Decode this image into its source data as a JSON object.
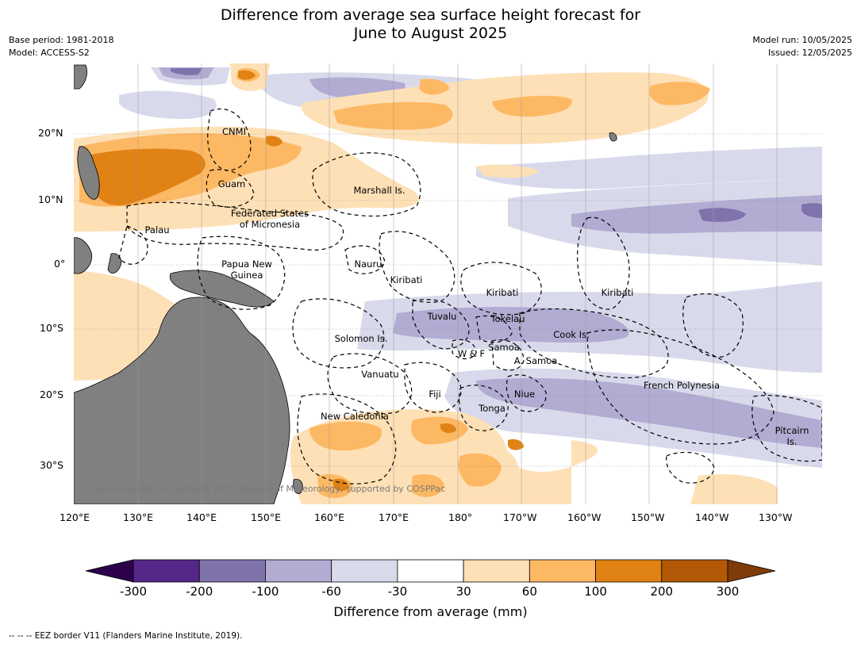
{
  "title_line1": "Difference from average sea surface height forecast for",
  "title_line2": "June to August 2025",
  "meta_left": [
    "Base period: 1981-2018",
    "Model: ACCESS-S2"
  ],
  "meta_right": [
    "Model run: 10/05/2025",
    "Issued: 12/05/2025"
  ],
  "lon_labels": [
    "120°E",
    "130°E",
    "140°E",
    "150°E",
    "160°E",
    "170°E",
    "180°",
    "170°W",
    "160°W",
    "150°W",
    "140°W",
    "130°W"
  ],
  "lat_labels": [
    "20°N",
    "10°N",
    "0°",
    "10°S",
    "20°S",
    "30°S"
  ],
  "places": [
    {
      "name": "CNMI"
    },
    {
      "name": "Guam"
    },
    {
      "name": "Marshall Is."
    },
    {
      "name": "Federated States\nof Micronesia"
    },
    {
      "name": "Palau"
    },
    {
      "name": "Papua New\nGuinea"
    },
    {
      "name": "Nauru"
    },
    {
      "name": "Kiribati"
    },
    {
      "name": "Kiribati"
    },
    {
      "name": "Kiribati"
    },
    {
      "name": "Tuvalu"
    },
    {
      "name": "Tokelau"
    },
    {
      "name": "Solomon Is."
    },
    {
      "name": "Cook Is."
    },
    {
      "name": "Samoa"
    },
    {
      "name": "W & F"
    },
    {
      "name": "A. Samoa"
    },
    {
      "name": "Vanuatu"
    },
    {
      "name": "Fiji"
    },
    {
      "name": "Niue"
    },
    {
      "name": "French Polynesia"
    },
    {
      "name": "Tonga"
    },
    {
      "name": "New Caledonia"
    },
    {
      "name": "Pitcairn\nIs."
    }
  ],
  "copyright": "© Commonwealth of Australia 2025, Bureau of Meteorology, supported by COSPPac",
  "colorbar": {
    "labels": [
      "-300",
      "-200",
      "-100",
      "-60",
      "-30",
      "30",
      "60",
      "100",
      "200",
      "300"
    ],
    "colors": [
      "#2d004b",
      "#542788",
      "#8073ac",
      "#b2abd2",
      "#d8daeb",
      "#ffffff",
      "#fee0b6",
      "#fdb863",
      "#e08214",
      "#b35806",
      "#7f3b08"
    ],
    "title": "Difference from average (mm)"
  },
  "eez_note": "--  --  -- EEZ border V11 (Flanders Marine Institute, 2019).",
  "colors": {
    "land": "#808080",
    "lavender": "#d8daeb",
    "lilac": "#b2abd2",
    "purple": "#8073ac",
    "peach": "#fee0b6",
    "orange_light": "#fdb863",
    "orange": "#e08214"
  }
}
